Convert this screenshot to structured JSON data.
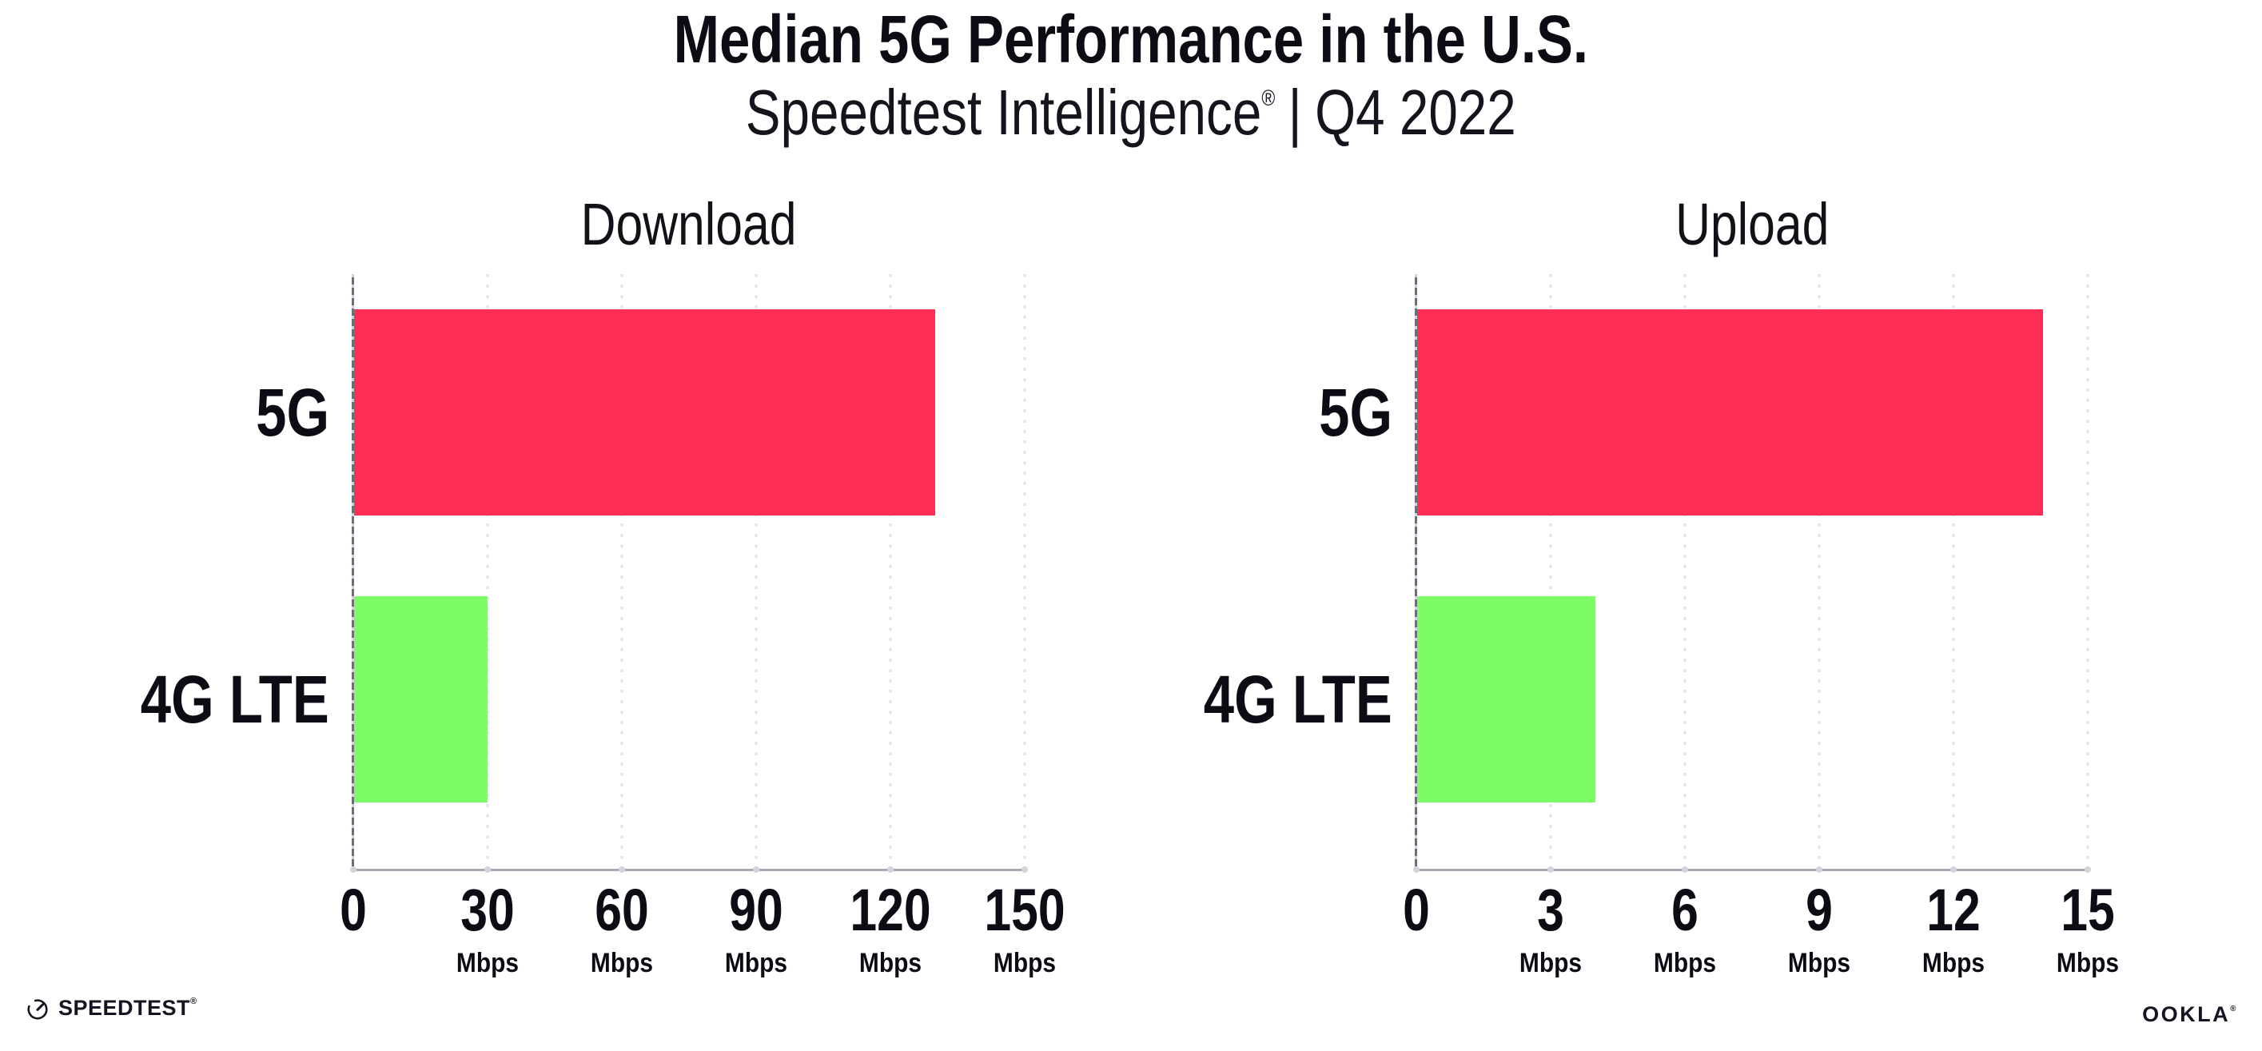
{
  "header": {
    "title": "Median 5G Performance in the U.S.",
    "subtitle": {
      "brand": "Speedtest Intelligence",
      "mark": "®",
      "divider": "|",
      "period": "Q4 2022"
    }
  },
  "chart_data": [
    {
      "type": "bar",
      "orientation": "horizontal",
      "title": "Download",
      "categories": [
        "5G",
        "4G LTE"
      ],
      "values": [
        130,
        30
      ],
      "unit": "Mbps",
      "xlim": [
        0,
        150
      ],
      "xticks": [
        0,
        30,
        60,
        90,
        120,
        150
      ],
      "grid": "vertical dotted",
      "legend_position": "none",
      "bar_colors": [
        "#ff2e55",
        "#7cfd65"
      ]
    },
    {
      "type": "bar",
      "orientation": "horizontal",
      "title": "Upload",
      "categories": [
        "5G",
        "4G LTE"
      ],
      "values": [
        14,
        4
      ],
      "unit": "Mbps",
      "xlim": [
        0,
        15
      ],
      "xticks": [
        0,
        3,
        6,
        9,
        12,
        15
      ],
      "grid": "vertical dotted",
      "legend_position": "none",
      "bar_colors": [
        "#ff2e55",
        "#7cfd65"
      ]
    }
  ],
  "footer": {
    "speedtest": {
      "label": "SPEEDTEST",
      "mark": "®",
      "icon": "speedtest-gauge"
    },
    "ookla": {
      "label": "OOKLA",
      "mark": "®"
    }
  },
  "colors": {
    "bar_5g": "#ff2e55",
    "bar_4g_lte": "#7cfd65",
    "gridline": "#e4e4ee",
    "x_axis": "#a8a8b0",
    "y_axis": "#6e6e76",
    "text": "#0c0c14",
    "background": "#ffffff"
  }
}
